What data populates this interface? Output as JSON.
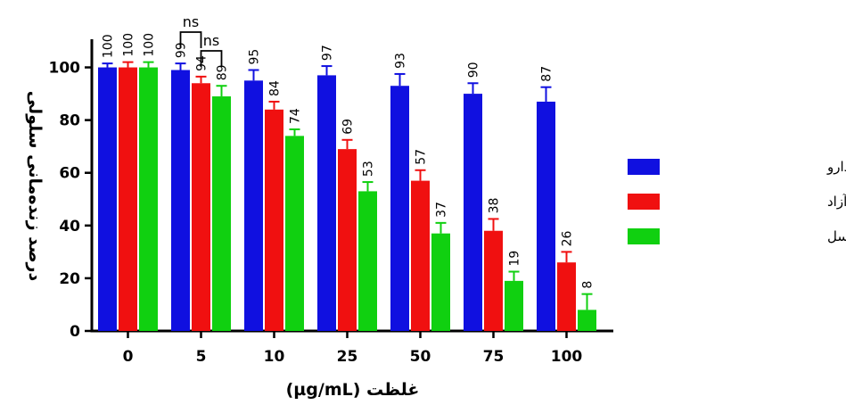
{
  "chart_data": {
    "type": "bar",
    "xlabel": "غلظت (µg/mL)",
    "ylabel": "درصد زنده‌مانی سلولی",
    "ylim": [
      0,
      110
    ],
    "yticks": [
      0,
      20,
      40,
      60,
      80,
      100
    ],
    "categories": [
      "0",
      "5",
      "10",
      "25",
      "50",
      "75",
      "100"
    ],
    "series": [
      {
        "name": "نیوزوم فاقد دارو",
        "color": "#1010e0",
        "values": [
          100,
          99,
          95,
          97,
          93,
          90,
          87
        ],
        "errors": [
          1.5,
          2.5,
          4,
          3.5,
          4.5,
          4,
          5.5
        ],
        "labels": [
          "100",
          "99",
          "95",
          "97",
          "93",
          "90",
          "87"
        ]
      },
      {
        "name": "پاکلی‌تاکسل آزاد",
        "color": "#f01010",
        "values": [
          100,
          94,
          84,
          69,
          57,
          38,
          26
        ],
        "errors": [
          2,
          2.5,
          3,
          3.5,
          4,
          4.5,
          4
        ],
        "labels": [
          "100",
          "94",
          "84",
          "69",
          "57",
          "38",
          "26"
        ]
      },
      {
        "name": "نانوسامانه حاوی پاکلی‌تاکسل",
        "color": "#10d010",
        "values": [
          100,
          89,
          74,
          53,
          37,
          19,
          8
        ],
        "errors": [
          2,
          4,
          2.5,
          3.5,
          4,
          3.5,
          6
        ],
        "labels": [
          "100",
          "89",
          "74",
          "53",
          "37",
          "19",
          "8"
        ]
      }
    ],
    "annotations": [
      {
        "text": "ns",
        "group": "5",
        "from_series": 0,
        "to_series": 1
      },
      {
        "text": "ns",
        "group": "5",
        "from_series": 1,
        "to_series": 2
      }
    ],
    "legend_position": "right",
    "grid": false
  }
}
